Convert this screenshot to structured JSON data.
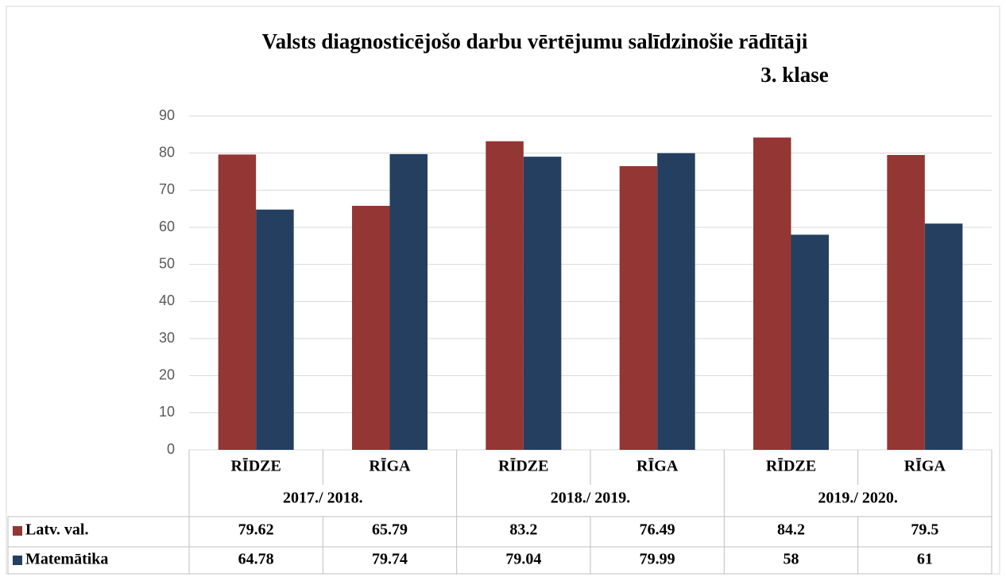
{
  "chart_data": {
    "type": "bar",
    "title": "Valsts diagnosticējošo darbu vērtējumu salīdzinošie rādītāji",
    "subtitle": "3. klase",
    "categories": [
      "RĪDZE",
      "RĪGA",
      "RĪDZE",
      "RĪGA",
      "RĪDZE",
      "RĪGA"
    ],
    "category_groups": [
      "2017./ 2018.",
      "2018./ 2019.",
      "2019./ 2020."
    ],
    "series": [
      {
        "name": "Latv. val.",
        "color": "#943634",
        "values": [
          79.62,
          65.79,
          83.2,
          76.49,
          84.2,
          79.5
        ]
      },
      {
        "name": "Matemātika",
        "color": "#243f60",
        "values": [
          64.78,
          79.74,
          79.04,
          79.99,
          58,
          61
        ]
      }
    ],
    "ylim": [
      0,
      90
    ],
    "yticks": [
      0,
      10,
      20,
      30,
      40,
      50,
      60,
      70,
      80,
      90
    ],
    "grid": true,
    "data_table": true
  }
}
